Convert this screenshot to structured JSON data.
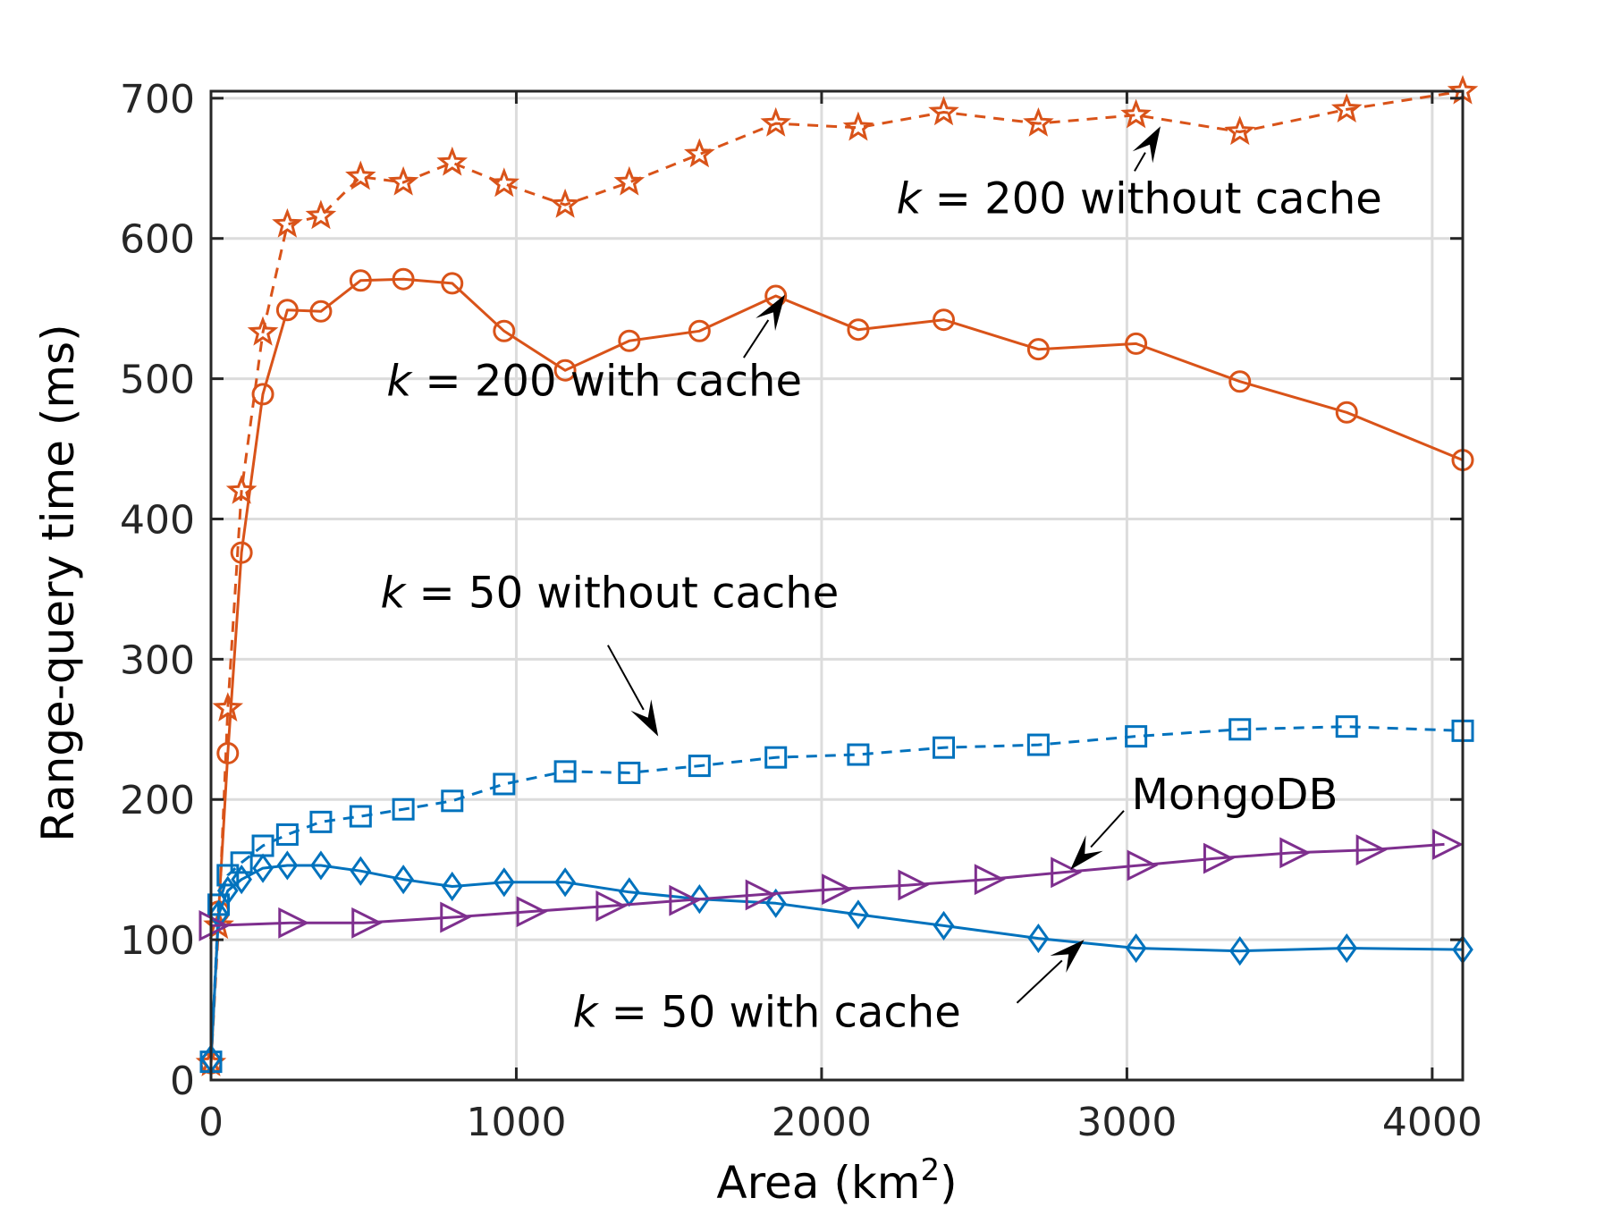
{
  "chart_data": {
    "type": "line",
    "xlabel": "Area (km",
    "xlabel_superscript": "2",
    "xlabel_suffix": ")",
    "ylabel": "Range-query time (ms)",
    "xlim": [
      0,
      4100
    ],
    "ylim": [
      0,
      705
    ],
    "xticks": [
      0,
      1000,
      2000,
      3000,
      4000
    ],
    "yticks": [
      0,
      100,
      200,
      300,
      400,
      500,
      600,
      700
    ],
    "grid": true,
    "series": [
      {
        "key": "k200_nocache",
        "color": "#D95319",
        "dash": "dashed",
        "marker": "star",
        "x": [
          0,
          25,
          55,
          100,
          170,
          250,
          360,
          490,
          630,
          790,
          960,
          1160,
          1370,
          1600,
          1850,
          2120,
          2400,
          2710,
          3030,
          3370,
          3720,
          4100
        ],
        "y": [
          12,
          110,
          265,
          420,
          533,
          610,
          616,
          644,
          640,
          654,
          639,
          624,
          640,
          660,
          682,
          679,
          690,
          682,
          688,
          676,
          692,
          705
        ]
      },
      {
        "key": "k200_cache",
        "color": "#D95319",
        "dash": "solid",
        "marker": "circle",
        "x": [
          0,
          25,
          55,
          100,
          170,
          250,
          360,
          490,
          630,
          790,
          960,
          1160,
          1370,
          1600,
          1850,
          2120,
          2400,
          2710,
          3030,
          3370,
          3720,
          4100
        ],
        "y": [
          12,
          120,
          233,
          376,
          489,
          549,
          548,
          570,
          571,
          568,
          534,
          506,
          527,
          534,
          559,
          535,
          542,
          521,
          525,
          498,
          476,
          442
        ]
      },
      {
        "key": "k50_nocache",
        "color": "#0072BD",
        "dash": "dashed",
        "marker": "square",
        "x": [
          0,
          25,
          55,
          100,
          170,
          250,
          360,
          490,
          630,
          790,
          960,
          1160,
          1370,
          1600,
          1850,
          2120,
          2400,
          2710,
          3030,
          3370,
          3720,
          4100
        ],
        "y": [
          13,
          125,
          146,
          155,
          167,
          175,
          184,
          188,
          193,
          199,
          211,
          220,
          219,
          224,
          230,
          232,
          237,
          239,
          245,
          250,
          252,
          249
        ]
      },
      {
        "key": "k50_cache",
        "color": "#0072BD",
        "dash": "solid",
        "marker": "diamond",
        "x": [
          0,
          25,
          55,
          100,
          170,
          250,
          360,
          490,
          630,
          790,
          960,
          1160,
          1370,
          1600,
          1850,
          2120,
          2400,
          2710,
          3030,
          3370,
          3720,
          4100
        ],
        "y": [
          15,
          118,
          135,
          143,
          151,
          153,
          153,
          149,
          143,
          138,
          141,
          141,
          134,
          129,
          126,
          118,
          110,
          101,
          94,
          92,
          94,
          93
        ]
      },
      {
        "key": "mongodb",
        "color": "#7E2F8E",
        "dash": "solid",
        "marker": "triangle-right",
        "x": [
          0,
          260,
          500,
          790,
          1040,
          1300,
          1540,
          1790,
          2040,
          2290,
          2540,
          2790,
          3040,
          3290,
          3540,
          3790,
          4040
        ],
        "y": [
          110,
          112,
          112,
          116,
          120,
          124,
          128,
          132,
          136,
          139,
          143,
          148,
          153,
          158,
          162,
          164,
          168
        ]
      }
    ],
    "annotations": [
      {
        "k": "k",
        "text": " = 200 without cache",
        "text_at": [
          2245,
          618
        ],
        "arrow_from": [
          3025,
          648
        ],
        "arrow_to": [
          3110,
          680
        ]
      },
      {
        "k": "k",
        "text": " = 200 with cache",
        "text_at": [
          575,
          488
        ],
        "arrow_from": [
          1745,
          515
        ],
        "arrow_to": [
          1880,
          560
        ]
      },
      {
        "k": "k",
        "text": " = 50 without cache",
        "text_at": [
          555,
          337
        ],
        "arrow_from": [
          1300,
          310
        ],
        "arrow_to": [
          1465,
          245
        ]
      },
      {
        "k": "",
        "text": "MongoDB",
        "text_at": [
          3015,
          193
        ],
        "arrow_from": [
          2990,
          192
        ],
        "arrow_to": [
          2815,
          150
        ]
      },
      {
        "k": "k",
        "text": " = 50 with cache",
        "text_at": [
          1185,
          38
        ],
        "arrow_from": [
          2640,
          55
        ],
        "arrow_to": [
          2860,
          100
        ]
      }
    ]
  }
}
